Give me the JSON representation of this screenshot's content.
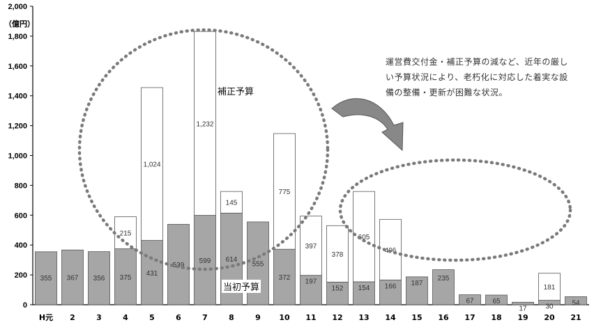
{
  "chart_data": {
    "type": "bar",
    "stacked": true,
    "unit_label": "（億円）",
    "categories": [
      "H元",
      "2",
      "3",
      "4",
      "5",
      "6",
      "7",
      "8",
      "9",
      "10",
      "11",
      "12",
      "13",
      "14",
      "15",
      "16",
      "17",
      "18",
      "19",
      "20",
      "21"
    ],
    "series": [
      {
        "name": "当初予算",
        "color": "#a6a6a6",
        "values": [
          355,
          367,
          356,
          375,
          431,
          539,
          599,
          614,
          555,
          372,
          197,
          152,
          154,
          166,
          187,
          235,
          67,
          65,
          17,
          30,
          54
        ]
      },
      {
        "name": "補正予算",
        "color": "#ffffff",
        "values": [
          0,
          0,
          0,
          215,
          1024,
          0,
          1232,
          145,
          0,
          775,
          397,
          378,
          605,
          406,
          0,
          0,
          0,
          0,
          0,
          181,
          0
        ]
      }
    ],
    "ylim": [
      0,
      2000
    ],
    "yticks": [
      "0",
      "200",
      "400",
      "600",
      "800",
      "1,000",
      "1,200",
      "1,400",
      "1,600",
      "1,800",
      "2,000"
    ],
    "grid": false
  },
  "annotation": {
    "text": "運営費交付金・補正予算の減など、近年の厳しい予算状況により、老朽化に対応した着実な設備の整備・更新が困難な状況。"
  },
  "labels": {
    "supplementary": "補正予算",
    "initial": "当初予算"
  }
}
